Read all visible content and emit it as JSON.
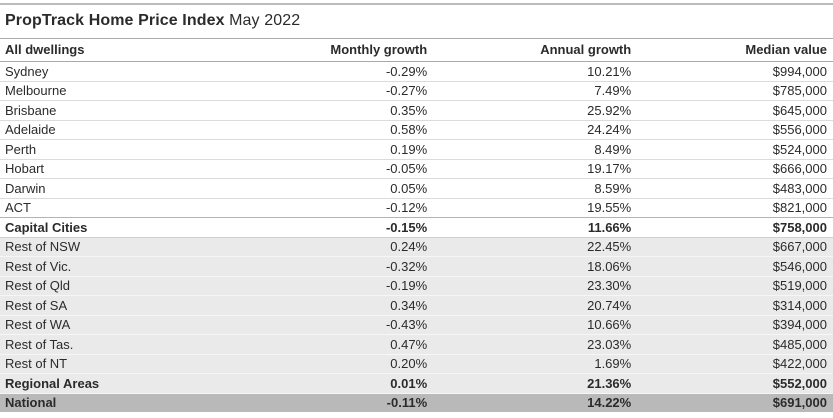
{
  "title": {
    "main": "PropTrack Home Price Index",
    "period": "May 2022"
  },
  "colors": {
    "text": "#2b2b2b",
    "shaded_row_bg": "#eaeaea",
    "dark_row_bg": "#b9b9b9",
    "separator": "#dbdbdb",
    "header_rule": "#a9a9a9"
  },
  "chart_data": {
    "type": "table",
    "title": "PropTrack Home Price Index",
    "subtitle": "May 2022",
    "columns": [
      "All dwellings",
      "Monthly growth",
      "Annual growth",
      "Median value"
    ],
    "rows": [
      {
        "label": "Sydney",
        "monthly": "-0.29%",
        "annual": "10.21%",
        "median": "$994,000",
        "style": "plain"
      },
      {
        "label": "Melbourne",
        "monthly": "-0.27%",
        "annual": "7.49%",
        "median": "$785,000",
        "style": "plain"
      },
      {
        "label": "Brisbane",
        "monthly": "0.35%",
        "annual": "25.92%",
        "median": "$645,000",
        "style": "plain"
      },
      {
        "label": "Adelaide",
        "monthly": "0.58%",
        "annual": "24.24%",
        "median": "$556,000",
        "style": "plain"
      },
      {
        "label": "Perth",
        "monthly": "0.19%",
        "annual": "8.49%",
        "median": "$524,000",
        "style": "plain"
      },
      {
        "label": "Hobart",
        "monthly": "-0.05%",
        "annual": "19.17%",
        "median": "$666,000",
        "style": "plain"
      },
      {
        "label": "Darwin",
        "monthly": "0.05%",
        "annual": "8.59%",
        "median": "$483,000",
        "style": "plain"
      },
      {
        "label": "ACT",
        "monthly": "-0.12%",
        "annual": "19.55%",
        "median": "$821,000",
        "style": "plain"
      },
      {
        "label": "Capital Cities",
        "monthly": "-0.15%",
        "annual": "11.66%",
        "median": "$758,000",
        "style": "bold"
      },
      {
        "label": "Rest of NSW",
        "monthly": "0.24%",
        "annual": "22.45%",
        "median": "$667,000",
        "style": "shaded"
      },
      {
        "label": "Rest of Vic.",
        "monthly": "-0.32%",
        "annual": "18.06%",
        "median": "$546,000",
        "style": "shaded"
      },
      {
        "label": "Rest of Qld",
        "monthly": "-0.19%",
        "annual": "23.30%",
        "median": "$519,000",
        "style": "shaded"
      },
      {
        "label": "Rest of SA",
        "monthly": "0.34%",
        "annual": "20.74%",
        "median": "$314,000",
        "style": "shaded"
      },
      {
        "label": "Rest of WA",
        "monthly": "-0.43%",
        "annual": "10.66%",
        "median": "$394,000",
        "style": "shaded"
      },
      {
        "label": "Rest of Tas.",
        "monthly": "0.47%",
        "annual": "23.03%",
        "median": "$485,000",
        "style": "shaded"
      },
      {
        "label": "Rest of NT",
        "monthly": "0.20%",
        "annual": "1.69%",
        "median": "$422,000",
        "style": "shaded"
      },
      {
        "label": "Regional Areas",
        "monthly": "0.01%",
        "annual": "21.36%",
        "median": "$552,000",
        "style": "bold-shaded"
      },
      {
        "label": "National",
        "monthly": "-0.11%",
        "annual": "14.22%",
        "median": "$691,000",
        "style": "bold-dark"
      }
    ]
  }
}
